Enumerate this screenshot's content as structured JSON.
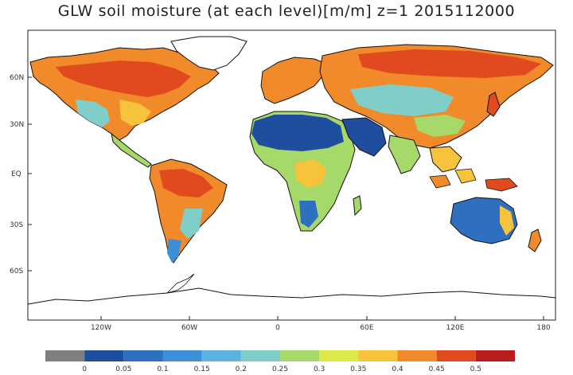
{
  "title": "GLW soil moisture (at each level)[m/m] z=1 2015112000",
  "lat_labels": [
    "60N",
    "30N",
    "EQ",
    "30S",
    "60S"
  ],
  "lon_labels": [
    "120W",
    "60W",
    "0",
    "60E",
    "120E",
    "180"
  ],
  "colorbar": {
    "labels": [
      "0",
      "0.05",
      "0.1",
      "0.15",
      "0.2",
      "0.25",
      "0.3",
      "0.35",
      "0.4",
      "0.45",
      "0.5"
    ],
    "colors": [
      "#7f7f7f",
      "#1f4e9e",
      "#2f6fbf",
      "#3d8fd6",
      "#5cb3e0",
      "#7fcfc8",
      "#a6d96a",
      "#dde84a",
      "#f6c33b",
      "#f08a2a",
      "#e04a1e",
      "#b81e1e"
    ]
  },
  "palette": {
    "ocean": "#ffffff",
    "coastline": "#111111",
    "desert": "#1f4e9e",
    "dry": "#3d8fd6",
    "semi_arid": "#7fcfc8",
    "moderate": "#a6d96a",
    "moist": "#f6c33b",
    "wet": "#f08a2a",
    "saturated": "#e04a1e",
    "ice": "#ffffff"
  }
}
